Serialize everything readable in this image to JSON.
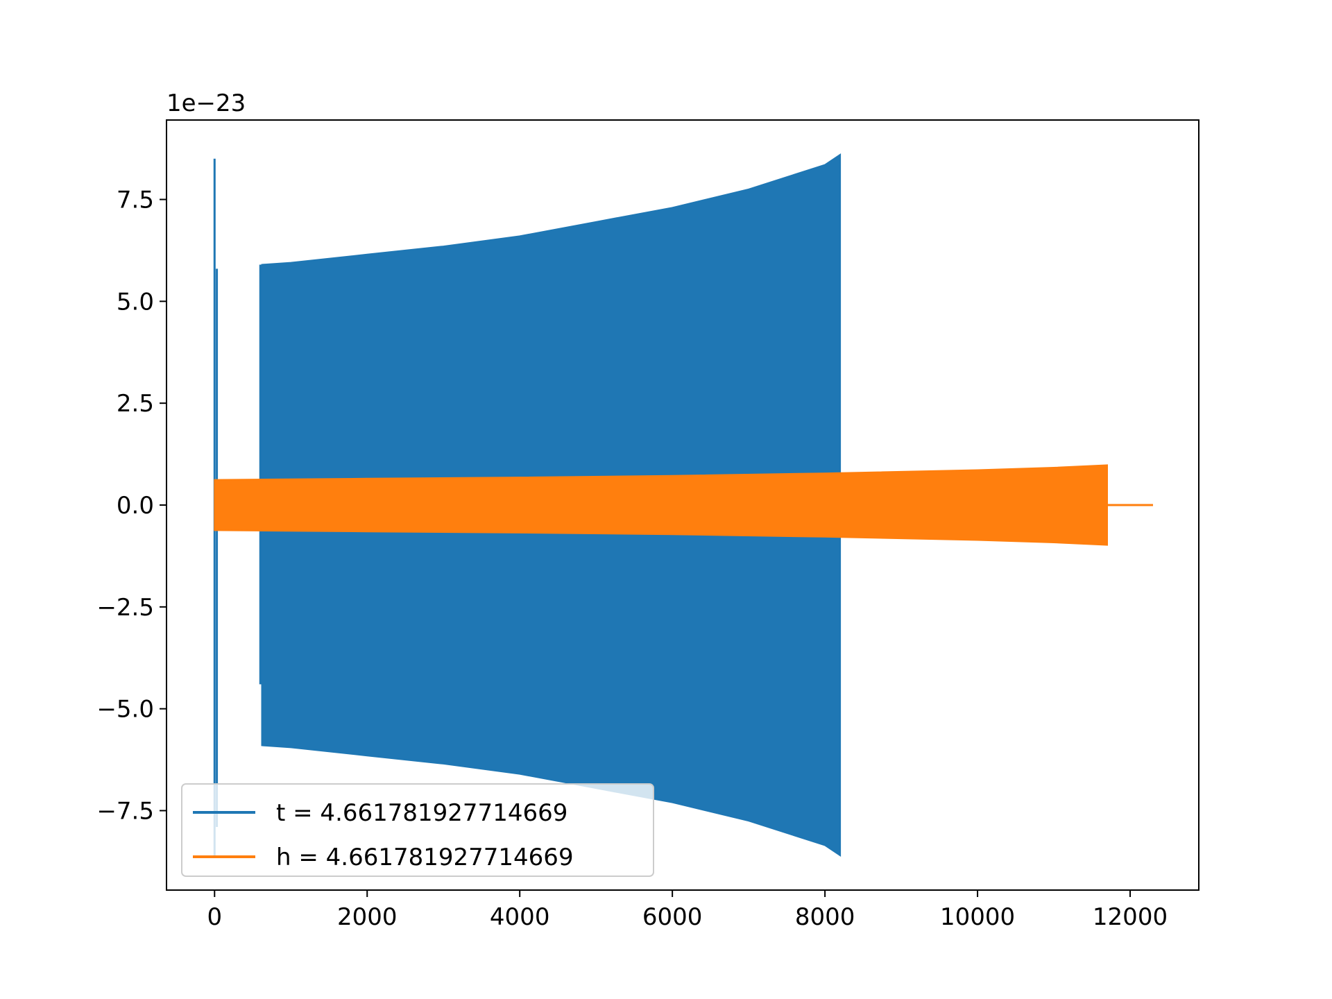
{
  "chart_data": {
    "type": "line",
    "title": "",
    "xlabel": "",
    "ylabel": "",
    "xlim": [
      -630,
      12900
    ],
    "ylim": [
      -9.45,
      9.45
    ],
    "y_scale_label": "1e−23",
    "x_ticks": [
      0,
      2000,
      4000,
      6000,
      8000,
      10000,
      12000
    ],
    "x_tick_labels": [
      "0",
      "2000",
      "4000",
      "6000",
      "8000",
      "10000",
      "12000"
    ],
    "y_ticks": [
      -7.5,
      -5.0,
      -2.5,
      0.0,
      2.5,
      5.0,
      7.5
    ],
    "y_tick_labels": [
      "−7.5",
      "−5.0",
      "−2.5",
      "0.0",
      "2.5",
      "5.0",
      "7.5"
    ],
    "grid": false,
    "legend_position": "lower-left",
    "series": [
      {
        "name": "t = 4.661781927714669",
        "color": "#1f77b4",
        "envelope": {
          "x": [
            620,
            1000,
            2000,
            3000,
            4000,
            5000,
            6000,
            7000,
            7500,
            8000,
            8200
          ],
          "upper": [
            5.9,
            5.95,
            6.15,
            6.35,
            6.6,
            6.95,
            7.3,
            7.75,
            8.05,
            8.35,
            8.6
          ],
          "lower": [
            -5.9,
            -5.95,
            -6.15,
            -6.35,
            -6.6,
            -6.95,
            -7.3,
            -7.75,
            -8.05,
            -8.35,
            -8.6
          ]
        },
        "spikes": [
          {
            "x": 0,
            "max": 8.5,
            "min": -8.6
          },
          {
            "x": 30,
            "max": 5.8,
            "min": -7.9
          },
          {
            "x": 600,
            "max": 5.9,
            "min": -4.4
          }
        ]
      },
      {
        "name": "h = 4.661781927714669",
        "color": "#ff7f0e",
        "envelope": {
          "x": [
            0,
            2000,
            4000,
            6000,
            8000,
            10000,
            11000,
            11700
          ],
          "upper": [
            0.62,
            0.65,
            0.68,
            0.72,
            0.78,
            0.86,
            0.92,
            0.98
          ],
          "lower": [
            -0.62,
            -0.65,
            -0.68,
            -0.72,
            -0.78,
            -0.86,
            -0.92,
            -0.98
          ]
        },
        "tail": {
          "x": [
            11700,
            12300
          ],
          "y": [
            0,
            0
          ]
        }
      }
    ]
  }
}
